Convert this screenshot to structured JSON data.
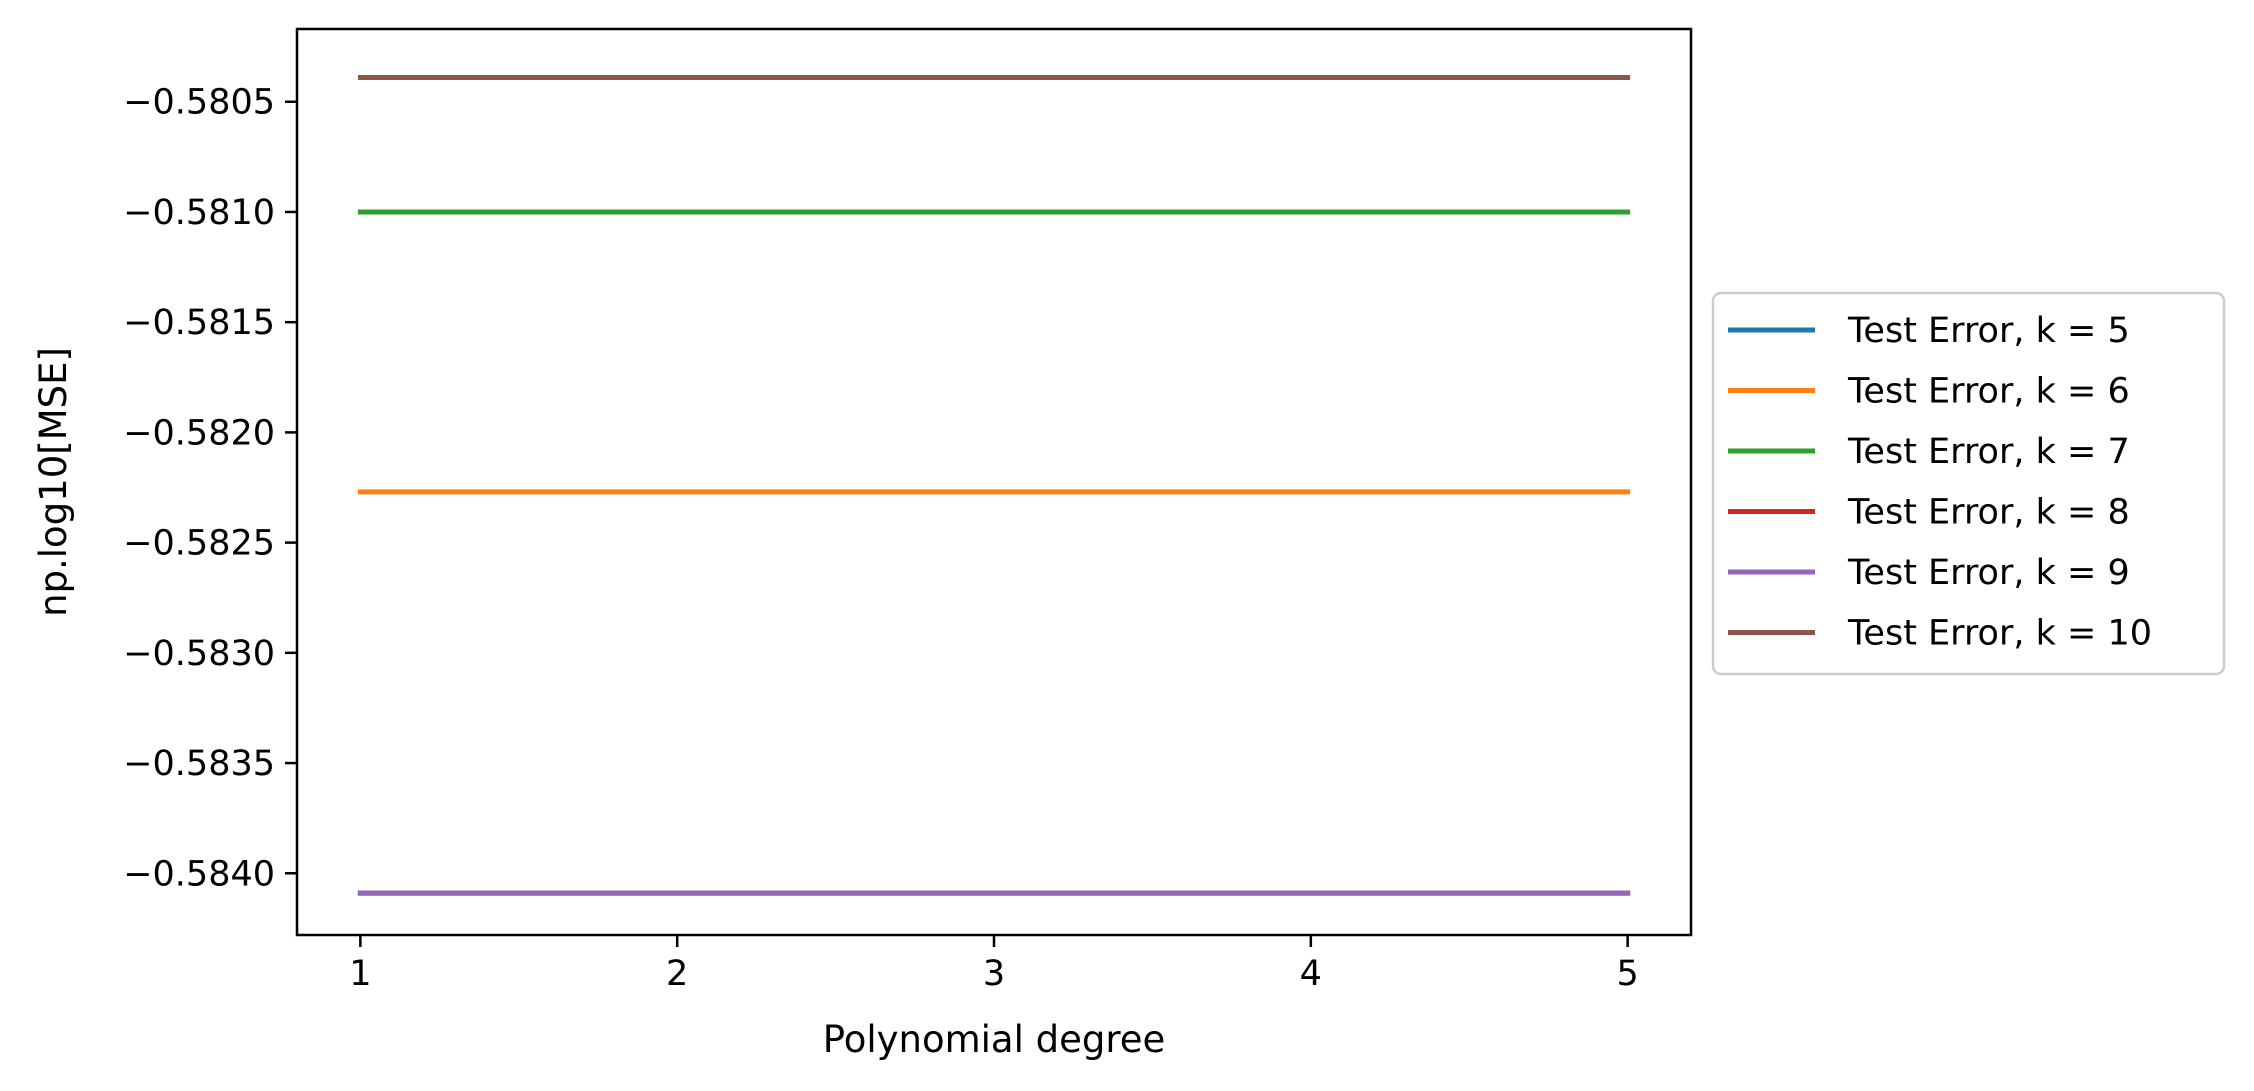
{
  "chart_data": {
    "type": "line",
    "title": "",
    "xlabel": "Polynomial degree",
    "ylabel": "np.log10[MSE]",
    "x": [
      1,
      2,
      3,
      4,
      5
    ],
    "xticks": [
      1,
      2,
      3,
      4,
      5
    ],
    "xtick_labels": [
      "1",
      "2",
      "3",
      "4",
      "5"
    ],
    "xlim": [
      0.8,
      5.2
    ],
    "yticks": [
      -0.5805,
      -0.581,
      -0.5815,
      -0.582,
      -0.5825,
      -0.583,
      -0.5835,
      -0.584
    ],
    "ytick_labels": [
      "−0.5805",
      "−0.5810",
      "−0.5815",
      "−0.5820",
      "−0.5825",
      "−0.5830",
      "−0.5835",
      "−0.5840"
    ],
    "ylim": [
      -0.58428,
      -0.58017
    ],
    "grid": false,
    "legend": {
      "placement": "center-left-outside"
    },
    "series": [
      {
        "name": "Test Error, k = 5",
        "color": "#1f77b4",
        "values": [
          -0.58409,
          -0.58409,
          -0.58409,
          -0.58409,
          -0.58409
        ]
      },
      {
        "name": "Test Error, k = 6",
        "color": "#ff7f0e",
        "values": [
          -0.58227,
          -0.58227,
          -0.58227,
          -0.58227,
          -0.58227
        ]
      },
      {
        "name": "Test Error, k = 7",
        "color": "#2ca02c",
        "values": [
          -0.581,
          -0.581,
          -0.581,
          -0.581,
          -0.581
        ]
      },
      {
        "name": "Test Error, k = 8",
        "color": "#d62728",
        "values": [
          -0.58409,
          -0.58409,
          -0.58409,
          -0.58409,
          -0.58409
        ]
      },
      {
        "name": "Test Error, k = 9",
        "color": "#9467bd",
        "values": [
          -0.58409,
          -0.58409,
          -0.58409,
          -0.58409,
          -0.58409
        ]
      },
      {
        "name": "Test Error, k = 10",
        "color": "#8c564b",
        "values": [
          -0.58039,
          -0.58039,
          -0.58039,
          -0.58039,
          -0.58039
        ]
      }
    ]
  }
}
